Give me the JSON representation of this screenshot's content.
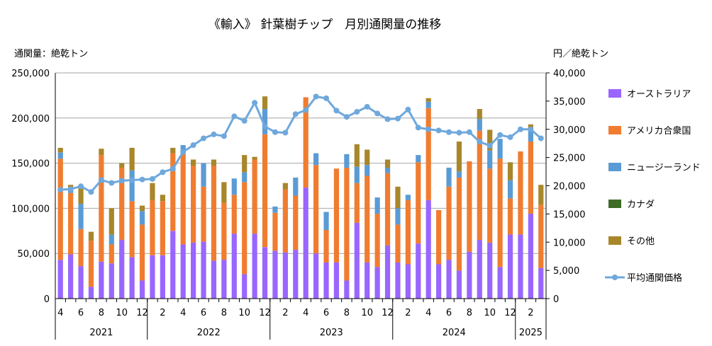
{
  "chart_data": {
    "type": "bar",
    "title": "《輸入》 針葉樹チップ　月別通関量の推移",
    "y_left_label": "通関量：絶乾トン",
    "y_right_label": "円／絶乾トン",
    "y_left_range": [
      0,
      250000
    ],
    "y_right_range": [
      0,
      40000
    ],
    "y_left_ticks": [
      "0",
      "50,000",
      "100,000",
      "150,000",
      "200,000",
      "250,000"
    ],
    "y_right_ticks": [
      "0",
      "5,000",
      "10,000",
      "15,000",
      "20,000",
      "25,000",
      "30,000",
      "35,000",
      "40,000"
    ],
    "stacked": true,
    "grid": "horizontal",
    "legend_position": "right",
    "months": [
      4,
      5,
      6,
      7,
      8,
      9,
      10,
      11,
      12,
      1,
      2,
      3,
      4,
      5,
      6,
      7,
      8,
      9,
      10,
      11,
      12,
      1,
      2,
      3,
      4,
      5,
      6,
      7,
      8,
      9,
      10,
      11,
      12,
      1,
      2,
      3,
      4,
      5,
      6,
      7,
      8,
      9,
      10,
      11,
      12,
      1,
      2,
      3
    ],
    "month_tick_labels": [
      "4",
      "6",
      "8",
      "10",
      "12",
      "2",
      "4",
      "6",
      "8",
      "10",
      "12",
      "2",
      "4",
      "6",
      "8",
      "10",
      "12",
      "2",
      "4",
      "6",
      "8",
      "10",
      "12",
      "2"
    ],
    "year_labels": [
      "2021",
      "2022",
      "2023",
      "2024",
      "2025"
    ],
    "series": [
      {
        "name": "オーストラリア",
        "color": "#9966ff",
        "values": [
          43000,
          49000,
          36000,
          13000,
          41000,
          39000,
          65000,
          46000,
          20000,
          48000,
          48000,
          75000,
          60000,
          62000,
          63000,
          42000,
          43000,
          72000,
          27000,
          72000,
          57000,
          53000,
          51000,
          54000,
          123000,
          50000,
          40000,
          40000,
          20000,
          84000,
          40000,
          35000,
          59000,
          40000,
          38000,
          61000,
          109000,
          38000,
          43000,
          31000,
          52000,
          65000,
          62000,
          35000,
          71000,
          71000,
          94000,
          34000
        ]
      },
      {
        "name": "アメリカ合衆国",
        "color": "#f07c30",
        "values": [
          112000,
          68000,
          41000,
          51000,
          118000,
          21000,
          80000,
          62000,
          62000,
          61000,
          60000,
          86000,
          100000,
          85000,
          61000,
          105000,
          63000,
          43000,
          102000,
          82000,
          125000,
          42000,
          70000,
          60000,
          100000,
          98000,
          36000,
          104000,
          125000,
          44000,
          96000,
          59000,
          80000,
          42000,
          71000,
          90000,
          102000,
          60000,
          81000,
          103000,
          100000,
          121000,
          82000,
          120000,
          40000,
          92000,
          80000,
          70000
        ]
      },
      {
        "name": "ニュージーランド",
        "color": "#5b9bd5",
        "values": [
          7000,
          6000,
          28000,
          0,
          0,
          11000,
          0,
          34000,
          15000,
          0,
          0,
          0,
          10000,
          0,
          26000,
          0,
          0,
          18000,
          11000,
          0,
          28000,
          7000,
          0,
          20000,
          0,
          13000,
          20000,
          0,
          15000,
          18000,
          12000,
          18000,
          6000,
          18000,
          6000,
          8000,
          7000,
          0,
          21000,
          7000,
          0,
          13000,
          20000,
          22000,
          20000,
          0,
          14000,
          0
        ]
      },
      {
        "name": "カナダ",
        "color": "#3e6b26",
        "values": [
          0,
          0,
          0,
          0,
          0,
          0,
          0,
          0,
          0,
          0,
          0,
          0,
          0,
          0,
          0,
          0,
          0,
          0,
          0,
          0,
          0,
          0,
          0,
          0,
          0,
          0,
          0,
          0,
          0,
          0,
          0,
          0,
          0,
          0,
          0,
          0,
          0,
          0,
          0,
          0,
          0,
          0,
          0,
          0,
          0,
          0,
          0,
          0
        ]
      },
      {
        "name": "その他",
        "color": "#a8862a",
        "values": [
          5000,
          3000,
          19000,
          10000,
          7000,
          29000,
          5000,
          25000,
          6000,
          19000,
          7000,
          6000,
          0,
          7000,
          0,
          7000,
          23000,
          0,
          19000,
          3000,
          14000,
          0,
          7000,
          0,
          0,
          0,
          0,
          0,
          0,
          25000,
          17000,
          0,
          9000,
          24000,
          0,
          0,
          4000,
          0,
          0,
          33000,
          0,
          11000,
          23000,
          0,
          20000,
          0,
          5000,
          22000
        ]
      }
    ],
    "line_series": {
      "name": "平均通関価格",
      "color": "#6fa8dc",
      "values": [
        19300,
        19400,
        19900,
        18900,
        21000,
        20500,
        20900,
        21000,
        21100,
        21200,
        22400,
        23000,
        26000,
        27200,
        28400,
        29100,
        28800,
        32300,
        31500,
        34700,
        30500,
        29500,
        29400,
        32700,
        33400,
        35800,
        35500,
        33300,
        32200,
        33100,
        34000,
        32800,
        31800,
        31900,
        33500,
        30300,
        30000,
        29800,
        29500,
        29400,
        29500,
        27800,
        27100,
        29000,
        28600,
        30000,
        30000,
        28400
      ]
    }
  }
}
